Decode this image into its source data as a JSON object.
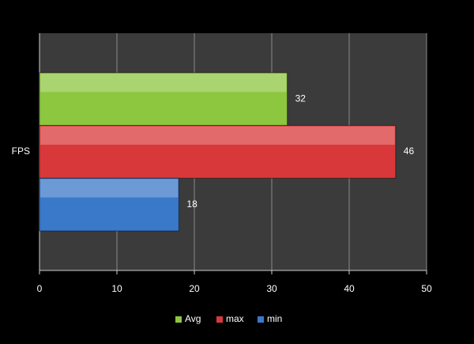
{
  "chart_data": {
    "type": "bar",
    "orientation": "horizontal",
    "categories": [
      "FPS"
    ],
    "series": [
      {
        "name": "Avg",
        "color": "#8dc63f",
        "values": [
          32
        ]
      },
      {
        "name": "max",
        "color": "#d9383a",
        "values": [
          46
        ]
      },
      {
        "name": "min",
        "color": "#3a78c9",
        "values": [
          18
        ]
      }
    ],
    "xlim": [
      0,
      50
    ],
    "xticks": [
      0,
      10,
      20,
      30,
      40,
      50
    ],
    "grid": true,
    "legend": "bottom"
  }
}
